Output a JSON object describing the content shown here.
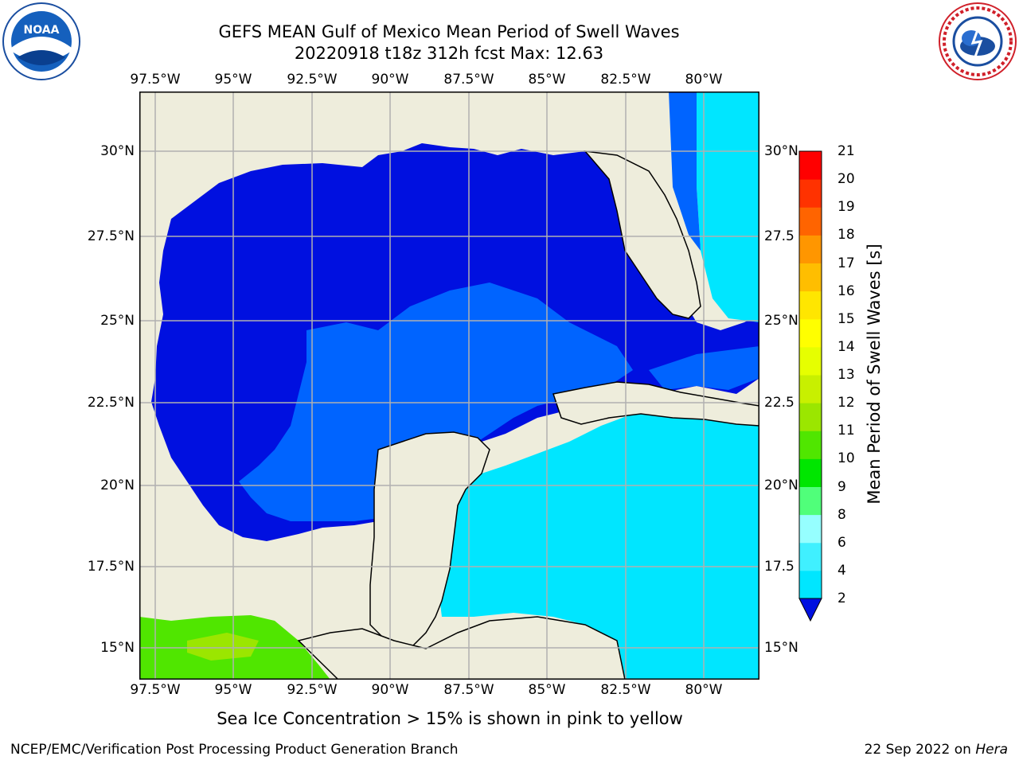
{
  "title": {
    "line1": "GEFS MEAN Gulf of Mexico Mean Period of Swell Waves",
    "line2": "20220918 t18z 312h fcst   Max: 12.63"
  },
  "logos": {
    "noaa": {
      "icon": "noaa-logo",
      "text": "NOAA"
    },
    "nws": {
      "icon": "nws-logo"
    }
  },
  "map": {
    "lon_ticks": [
      "97.5°W",
      "95°W",
      "92.5°W",
      "90°W",
      "87.5°W",
      "85°W",
      "82.5°W",
      "80°W"
    ],
    "lat_ticks_left": [
      "30°N",
      "27.5°N",
      "25°N",
      "22.5°N",
      "20°N",
      "17.5°N",
      "15°N"
    ],
    "lat_ticks_right": [
      "30°N",
      "27.5",
      "25°N",
      "22.5",
      "20°N",
      "17.5",
      "15°N"
    ],
    "land_color": "#eeeddc",
    "grid_color": "#b0b0b0"
  },
  "colorbar": {
    "label": "Mean Period of Swell Waves [s]",
    "ticks": [
      "2",
      "4",
      "6",
      "8",
      "9",
      "10",
      "11",
      "12",
      "13",
      "14",
      "15",
      "16",
      "17",
      "18",
      "19",
      "20",
      "21"
    ],
    "colors": [
      "#0064ff",
      "#00e6ff",
      "#40f0ff",
      "#96ffff",
      "#50ff7a",
      "#00e600",
      "#50e600",
      "#9be600",
      "#c8f000",
      "#e6ff00",
      "#ffff00",
      "#ffe600",
      "#ffbe00",
      "#ff9600",
      "#ff6400",
      "#ff3200",
      "#ff0000"
    ],
    "extend_color": "#0010e0"
  },
  "note": "Sea Ice Concentration > 15% is shown in pink to yellow",
  "footer": {
    "left": "NCEP/EMC/Verification Post Processing Product Generation Branch",
    "right_date": "22 Sep 2022 on",
    "right_host": "Hera"
  }
}
